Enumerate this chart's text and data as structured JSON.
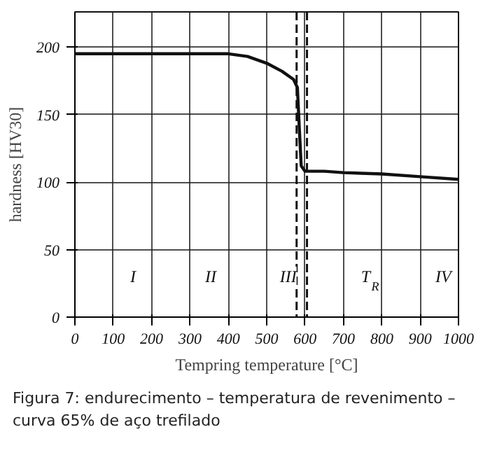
{
  "chart_data": {
    "type": "line",
    "xlabel": "Tempring temperature [°C]",
    "ylabel": "hardness [HV30]",
    "x": [
      0,
      100,
      200,
      300,
      400,
      450,
      500,
      540,
      570,
      580,
      585,
      590,
      600,
      650,
      700,
      800,
      900,
      1000
    ],
    "series": [
      {
        "color": "#111111",
        "values": [
          195,
          195,
          195,
          195,
          195,
          193,
          188,
          182,
          176,
          170,
          140,
          112,
          108,
          108,
          107,
          106,
          104,
          102
        ]
      }
    ],
    "xlim": [
      0,
      1000
    ],
    "ylim": [
      0,
      226
    ],
    "xticks": [
      0,
      100,
      200,
      300,
      400,
      500,
      600,
      700,
      800,
      900,
      1000
    ],
    "yticks": [
      0,
      50,
      100,
      150,
      200
    ],
    "grid": true,
    "line_style": "solid",
    "ref_lines": [
      {
        "axis": "x",
        "value": 578,
        "line_style": "dashed"
      },
      {
        "axis": "x",
        "value": 605,
        "line_style": "dashed"
      }
    ],
    "annotations": [
      "I",
      "II",
      "III",
      "T$_{R}$",
      "IV",
      "Figura 7: endurecimento – temperatura de revenimento – curva 65% de aço trefilado"
    ]
  }
}
